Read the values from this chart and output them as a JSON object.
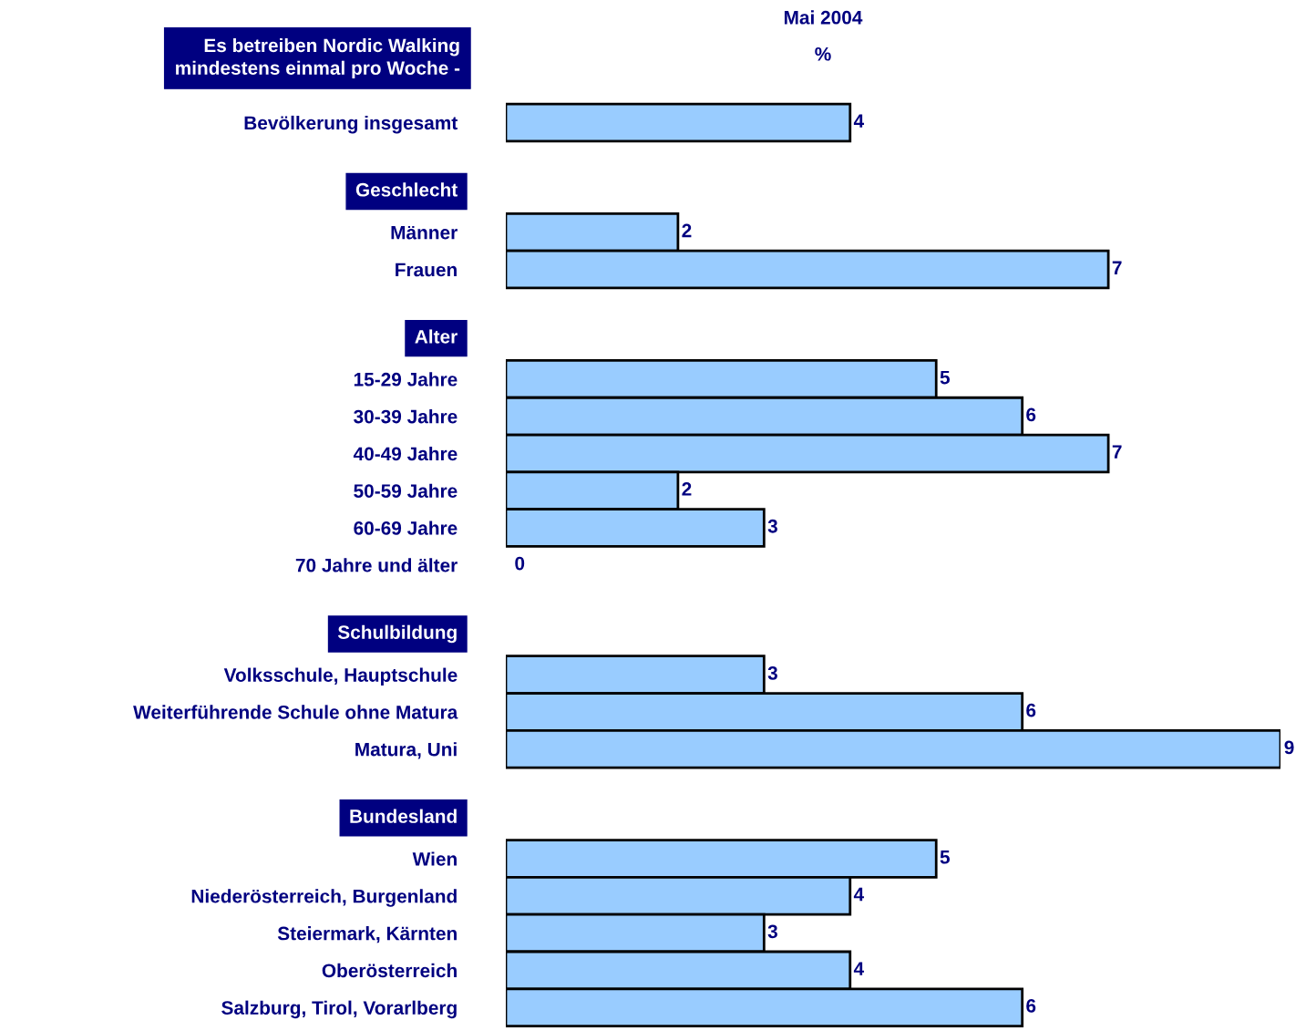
{
  "chart_data": {
    "type": "bar",
    "orientation": "horizontal",
    "title": "Es betreiben Nordic Walking\nmindestens einmal pro Woche -",
    "subtitle": "Mai 2004",
    "xlabel": "%",
    "categories": [
      "Bevölkerung insgesamt",
      "Geschlecht",
      "Männer",
      "Frauen",
      "Alter",
      "15-29 Jahre",
      "30-39 Jahre",
      "40-49 Jahre",
      "50-59 Jahre",
      "60-69 Jahre",
      "70 Jahre und älter",
      "Schulbildung",
      "Volksschule, Hauptschule",
      "Weiterführende Schule ohne Matura",
      "Matura, Uni",
      "Bundesland",
      "Wien",
      "Niederösterreich, Burgenland",
      "Steiermark, Kärnten",
      "Oberösterreich",
      "Salzburg, Tirol, Vorarlberg"
    ],
    "values": [
      4,
      null,
      2,
      7,
      null,
      5,
      6,
      7,
      2,
      3,
      0,
      null,
      3,
      6,
      9,
      null,
      5,
      4,
      3,
      4,
      6
    ],
    "color": "#99ccff",
    "data_labels": true,
    "grid": false,
    "legend": false
  }
}
